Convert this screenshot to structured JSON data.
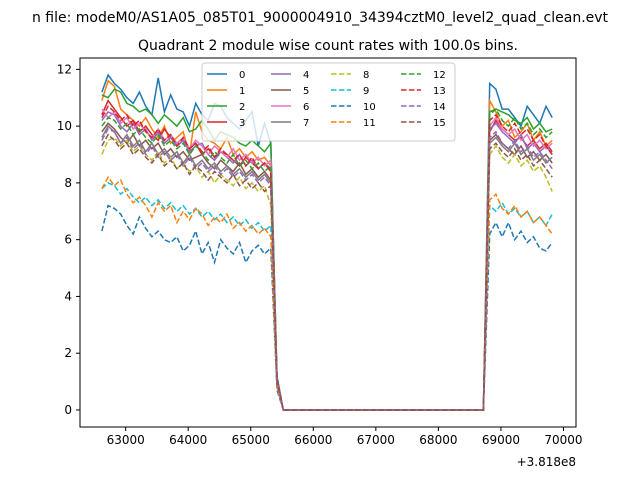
{
  "suptitle": "n file: modeM0/AS1A05_085T01_9000004910_34394cztM0_level2_quad_clean.evt",
  "chart_data": {
    "type": "line",
    "title": "Quadrant 2 module wise count rates with 100.0s bins.",
    "xlabel": "",
    "ylabel": "",
    "x_offset_label": "+3.818e8",
    "xlim": [
      62270,
      70200
    ],
    "ylim": [
      -0.6,
      12.4
    ],
    "xticks": [
      63000,
      64000,
      65000,
      66000,
      67000,
      68000,
      69000,
      70000
    ],
    "yticks": [
      0,
      2,
      4,
      6,
      8,
      10,
      12
    ],
    "grid": false,
    "legend_position": "top-center",
    "legend_columns": 4,
    "gap": [
      65300,
      68800
    ],
    "x_start": 62620,
    "x_step": 100,
    "series": [
      {
        "name": "0",
        "color": "#1f77b4",
        "dash": "solid",
        "values": [
          11.2,
          11.8,
          11.5,
          11.3,
          11.0,
          10.8,
          11.2,
          10.7,
          10.4,
          11.7,
          10.5,
          11.1,
          10.6,
          10.5,
          10.0,
          10.8,
          10.4,
          10.2,
          10.8,
          10.7,
          10.3,
          10.1,
          9.9,
          10.2,
          10.5,
          9.3,
          10.1,
          9.4,
          1.2,
          0,
          0,
          0,
          0,
          0,
          0,
          0,
          0,
          0,
          0,
          0,
          0,
          0,
          0,
          0,
          0,
          0,
          0,
          0,
          0,
          0,
          0,
          0,
          0,
          0,
          0,
          0,
          0,
          0,
          0,
          0,
          0,
          0,
          11.5,
          11.3,
          10.6,
          10.6,
          10.3,
          10.0,
          10.7,
          10.4,
          10.1,
          10.7,
          10.3
        ]
      },
      {
        "name": "1",
        "color": "#ff7f0e",
        "dash": "solid",
        "values": [
          10.9,
          11.6,
          11.4,
          10.6,
          10.4,
          10.2,
          10.0,
          10.3,
          9.9,
          9.6,
          10.0,
          9.4,
          9.6,
          9.8,
          9.0,
          10.5,
          9.8,
          9.5,
          9.4,
          9.2,
          9.6,
          9.0,
          9.2,
          8.9,
          9.1,
          8.8,
          8.9,
          8.6,
          1.1,
          0,
          0,
          0,
          0,
          0,
          0,
          0,
          0,
          0,
          0,
          0,
          0,
          0,
          0,
          0,
          0,
          0,
          0,
          0,
          0,
          0,
          0,
          0,
          0,
          0,
          0,
          0,
          0,
          0,
          0,
          0,
          0,
          0,
          10.9,
          10.5,
          10.0,
          10.2,
          9.6,
          9.8,
          10.1,
          9.5,
          9.8,
          9.3,
          9.5
        ]
      },
      {
        "name": "2",
        "color": "#2ca02c",
        "dash": "solid",
        "values": [
          11.1,
          11.0,
          11.3,
          11.2,
          10.8,
          10.7,
          10.5,
          10.6,
          10.4,
          10.1,
          10.4,
          10.2,
          10.0,
          10.3,
          9.8,
          9.9,
          10.2,
          9.9,
          9.5,
          9.8,
          9.7,
          9.6,
          9.4,
          9.3,
          9.5,
          9.3,
          9.1,
          9.4,
          1.1,
          0,
          0,
          0,
          0,
          0,
          0,
          0,
          0,
          0,
          0,
          0,
          0,
          0,
          0,
          0,
          0,
          0,
          0,
          0,
          0,
          0,
          0,
          0,
          0,
          0,
          0,
          0,
          0,
          0,
          0,
          0,
          0,
          0,
          10.5,
          10.6,
          10.5,
          10.4,
          10.2,
          10.1,
          10.3,
          9.9,
          10.1,
          9.8,
          9.9
        ]
      },
      {
        "name": "3",
        "color": "#d62728",
        "dash": "solid",
        "values": [
          10.4,
          10.9,
          10.6,
          10.3,
          10.0,
          10.2,
          9.8,
          10.0,
          9.7,
          9.5,
          9.9,
          9.6,
          9.3,
          9.5,
          9.2,
          9.4,
          9.0,
          9.2,
          8.9,
          9.1,
          9.0,
          8.8,
          8.6,
          8.9,
          8.7,
          8.5,
          8.7,
          8.4,
          1.1,
          0,
          0,
          0,
          0,
          0,
          0,
          0,
          0,
          0,
          0,
          0,
          0,
          0,
          0,
          0,
          0,
          0,
          0,
          0,
          0,
          0,
          0,
          0,
          0,
          0,
          0,
          0,
          0,
          0,
          0,
          0,
          0,
          0,
          9.8,
          10.2,
          9.9,
          9.7,
          9.5,
          9.6,
          9.3,
          9.5,
          9.2,
          9.4,
          9.1
        ]
      },
      {
        "name": "4",
        "color": "#9467bd",
        "dash": "solid",
        "values": [
          10.2,
          10.5,
          10.4,
          10.0,
          9.8,
          10.1,
          9.7,
          9.9,
          9.5,
          9.8,
          9.4,
          9.6,
          9.3,
          9.5,
          9.1,
          9.3,
          9.4,
          9.0,
          8.8,
          9.1,
          8.9,
          8.7,
          9.0,
          8.6,
          8.8,
          8.5,
          8.7,
          8.5,
          1.1,
          0,
          0,
          0,
          0,
          0,
          0,
          0,
          0,
          0,
          0,
          0,
          0,
          0,
          0,
          0,
          0,
          0,
          0,
          0,
          0,
          0,
          0,
          0,
          0,
          0,
          0,
          0,
          0,
          0,
          0,
          0,
          0,
          0,
          9.9,
          10.1,
          9.8,
          9.6,
          9.4,
          9.7,
          9.2,
          9.4,
          9.1,
          9.3,
          9.0
        ]
      },
      {
        "name": "5",
        "color": "#8c564b",
        "dash": "solid",
        "values": [
          9.8,
          10.1,
          9.9,
          9.6,
          9.4,
          9.7,
          9.3,
          9.5,
          9.2,
          9.4,
          9.0,
          9.2,
          8.9,
          9.1,
          8.8,
          8.9,
          9.0,
          8.7,
          8.5,
          8.8,
          8.6,
          8.4,
          8.7,
          8.3,
          8.5,
          8.2,
          8.4,
          8.1,
          1.0,
          0,
          0,
          0,
          0,
          0,
          0,
          0,
          0,
          0,
          0,
          0,
          0,
          0,
          0,
          0,
          0,
          0,
          0,
          0,
          0,
          0,
          0,
          0,
          0,
          0,
          0,
          0,
          0,
          0,
          0,
          0,
          0,
          0,
          9.5,
          9.7,
          9.4,
          9.2,
          9.0,
          9.3,
          8.9,
          9.1,
          8.8,
          9.0,
          8.7
        ]
      },
      {
        "name": "6",
        "color": "#e377c2",
        "dash": "solid",
        "values": [
          10.6,
          10.3,
          10.5,
          10.1,
          10.3,
          9.9,
          10.1,
          9.8,
          9.6,
          9.9,
          9.5,
          9.7,
          9.4,
          9.6,
          9.2,
          9.5,
          9.3,
          9.0,
          9.3,
          9.1,
          8.9,
          9.2,
          8.8,
          9.0,
          8.7,
          8.9,
          8.6,
          8.8,
          1.1,
          0,
          0,
          0,
          0,
          0,
          0,
          0,
          0,
          0,
          0,
          0,
          0,
          0,
          0,
          0,
          0,
          0,
          0,
          0,
          0,
          0,
          0,
          0,
          0,
          0,
          0,
          0,
          0,
          0,
          0,
          0,
          0,
          0,
          10.0,
          10.3,
          9.9,
          9.7,
          9.9,
          9.5,
          9.7,
          9.3,
          9.5,
          9.2,
          9.4
        ]
      },
      {
        "name": "7",
        "color": "#7f7f7f",
        "dash": "solid",
        "values": [
          9.6,
          10.0,
          9.8,
          9.4,
          9.7,
          9.3,
          9.5,
          9.1,
          9.4,
          9.0,
          9.2,
          8.9,
          9.1,
          8.7,
          9.0,
          8.6,
          8.8,
          8.5,
          8.7,
          8.4,
          8.6,
          8.3,
          8.5,
          8.2,
          8.4,
          8.1,
          8.3,
          8.0,
          1.0,
          0,
          0,
          0,
          0,
          0,
          0,
          0,
          0,
          0,
          0,
          0,
          0,
          0,
          0,
          0,
          0,
          0,
          0,
          0,
          0,
          0,
          0,
          0,
          0,
          0,
          0,
          0,
          0,
          0,
          0,
          0,
          0,
          0,
          9.4,
          9.6,
          9.3,
          9.1,
          9.4,
          9.0,
          9.2,
          8.8,
          9.0,
          8.7,
          8.9
        ]
      },
      {
        "name": "8",
        "color": "#bcbd22",
        "dash": "dashed",
        "values": [
          9.0,
          9.5,
          9.6,
          9.3,
          9.5,
          9.1,
          9.3,
          9.0,
          8.8,
          9.1,
          8.7,
          8.9,
          8.5,
          8.7,
          8.4,
          8.6,
          8.2,
          8.4,
          8.0,
          8.3,
          8.1,
          7.9,
          8.2,
          7.8,
          8.0,
          7.7,
          7.9,
          7.2,
          0.9,
          0,
          0,
          0,
          0,
          0,
          0,
          0,
          0,
          0,
          0,
          0,
          0,
          0,
          0,
          0,
          0,
          0,
          0,
          0,
          0,
          0,
          0,
          0,
          0,
          0,
          0,
          0,
          0,
          0,
          0,
          0,
          0,
          0,
          9.0,
          9.3,
          8.9,
          8.7,
          9.0,
          8.6,
          8.8,
          8.4,
          8.6,
          8.2,
          7.7
        ]
      },
      {
        "name": "9",
        "color": "#17becf",
        "dash": "dashed",
        "values": [
          7.8,
          8.0,
          7.9,
          7.6,
          7.8,
          7.5,
          7.3,
          7.5,
          7.2,
          7.4,
          7.1,
          7.3,
          7.0,
          7.2,
          6.9,
          7.1,
          6.8,
          7.0,
          6.7,
          6.9,
          6.6,
          6.8,
          6.5,
          6.7,
          6.4,
          6.6,
          6.3,
          6.5,
          0.8,
          0,
          0,
          0,
          0,
          0,
          0,
          0,
          0,
          0,
          0,
          0,
          0,
          0,
          0,
          0,
          0,
          0,
          0,
          0,
          0,
          0,
          0,
          0,
          0,
          0,
          0,
          0,
          0,
          0,
          0,
          0,
          0,
          0,
          7.2,
          7.0,
          7.3,
          6.9,
          7.1,
          6.8,
          7.0,
          6.6,
          6.8,
          6.5,
          6.9
        ]
      },
      {
        "name": "10",
        "color": "#1f77b4",
        "dash": "dashed",
        "values": [
          6.3,
          7.2,
          7.1,
          6.9,
          6.5,
          6.2,
          6.8,
          6.4,
          6.1,
          6.3,
          6.0,
          5.9,
          6.1,
          5.6,
          5.8,
          6.3,
          5.5,
          5.9,
          5.2,
          6.0,
          5.7,
          5.5,
          5.9,
          5.2,
          5.6,
          5.8,
          5.5,
          5.7,
          0.7,
          0,
          0,
          0,
          0,
          0,
          0,
          0,
          0,
          0,
          0,
          0,
          0,
          0,
          0,
          0,
          0,
          0,
          0,
          0,
          0,
          0,
          0,
          0,
          0,
          0,
          0,
          0,
          0,
          0,
          0,
          0,
          0,
          0,
          6.2,
          6.6,
          6.1,
          6.6,
          6.0,
          6.3,
          5.9,
          6.1,
          5.7,
          5.6,
          5.9
        ]
      },
      {
        "name": "11",
        "color": "#ff7f0e",
        "dash": "dashed",
        "values": [
          7.8,
          8.2,
          7.9,
          8.1,
          7.6,
          7.3,
          7.5,
          7.2,
          6.8,
          7.3,
          7.0,
          7.2,
          6.6,
          7.0,
          6.7,
          7.1,
          6.9,
          6.5,
          6.8,
          6.6,
          6.9,
          6.4,
          6.6,
          6.3,
          6.5,
          6.2,
          6.4,
          6.1,
          0.8,
          0,
          0,
          0,
          0,
          0,
          0,
          0,
          0,
          0,
          0,
          0,
          0,
          0,
          0,
          0,
          0,
          0,
          0,
          0,
          0,
          0,
          0,
          0,
          0,
          0,
          0,
          0,
          0,
          0,
          0,
          0,
          0,
          0,
          7.4,
          7.6,
          7.1,
          6.9,
          7.2,
          6.8,
          7.0,
          6.6,
          6.8,
          6.5,
          6.2
        ]
      },
      {
        "name": "12",
        "color": "#2ca02c",
        "dash": "dashed",
        "values": [
          10.0,
          10.3,
          10.2,
          9.9,
          10.1,
          9.7,
          9.9,
          9.6,
          9.4,
          9.7,
          9.3,
          9.5,
          9.2,
          9.4,
          9.0,
          9.3,
          9.1,
          8.8,
          9.1,
          8.9,
          8.7,
          9.0,
          8.6,
          8.8,
          8.5,
          8.7,
          8.4,
          8.6,
          1.1,
          0,
          0,
          0,
          0,
          0,
          0,
          0,
          0,
          0,
          0,
          0,
          0,
          0,
          0,
          0,
          0,
          0,
          0,
          0,
          0,
          0,
          0,
          0,
          0,
          0,
          0,
          0,
          0,
          0,
          0,
          0,
          0,
          0,
          10.4,
          10.6,
          10.2,
          10.0,
          10.3,
          9.9,
          10.1,
          9.7,
          9.9,
          9.6,
          9.8
        ]
      },
      {
        "name": "13",
        "color": "#d62728",
        "dash": "dashed",
        "values": [
          10.3,
          10.7,
          10.5,
          10.2,
          10.4,
          10.0,
          10.2,
          9.8,
          9.6,
          9.9,
          9.5,
          9.7,
          9.3,
          9.6,
          9.2,
          9.4,
          9.1,
          9.3,
          8.9,
          9.2,
          9.0,
          8.8,
          9.0,
          8.6,
          8.9,
          8.5,
          8.7,
          8.4,
          1.1,
          0,
          0,
          0,
          0,
          0,
          0,
          0,
          0,
          0,
          0,
          0,
          0,
          0,
          0,
          0,
          0,
          0,
          0,
          0,
          0,
          0,
          0,
          0,
          0,
          0,
          0,
          0,
          0,
          0,
          0,
          0,
          0,
          0,
          10.2,
          10.4,
          10.0,
          9.8,
          10.1,
          9.7,
          9.9,
          9.5,
          9.7,
          9.3,
          9.0
        ]
      },
      {
        "name": "14",
        "color": "#9467bd",
        "dash": "dashed",
        "values": [
          9.5,
          9.9,
          9.8,
          9.4,
          9.6,
          9.2,
          9.4,
          9.0,
          9.3,
          8.9,
          9.1,
          8.8,
          9.0,
          8.6,
          8.9,
          8.5,
          8.7,
          8.4,
          8.6,
          8.3,
          8.5,
          8.2,
          8.4,
          8.1,
          8.3,
          8.0,
          8.2,
          7.9,
          1.0,
          0,
          0,
          0,
          0,
          0,
          0,
          0,
          0,
          0,
          0,
          0,
          0,
          0,
          0,
          0,
          0,
          0,
          0,
          0,
          0,
          0,
          0,
          0,
          0,
          0,
          0,
          0,
          0,
          0,
          0,
          0,
          0,
          0,
          9.6,
          9.8,
          9.4,
          9.2,
          9.5,
          9.1,
          9.3,
          8.9,
          9.1,
          8.8,
          8.5
        ]
      },
      {
        "name": "15",
        "color": "#8c564b",
        "dash": "dashed",
        "values": [
          9.3,
          9.7,
          9.5,
          9.2,
          9.4,
          9.0,
          9.2,
          8.9,
          8.7,
          9.0,
          8.6,
          8.8,
          8.5,
          8.7,
          8.3,
          8.6,
          8.4,
          8.1,
          8.4,
          8.2,
          8.0,
          8.3,
          7.9,
          8.1,
          7.8,
          8.0,
          7.7,
          7.9,
          1.0,
          0,
          0,
          0,
          0,
          0,
          0,
          0,
          0,
          0,
          0,
          0,
          0,
          0,
          0,
          0,
          0,
          0,
          0,
          0,
          0,
          0,
          0,
          0,
          0,
          0,
          0,
          0,
          0,
          0,
          0,
          0,
          0,
          0,
          9.2,
          9.4,
          9.1,
          8.9,
          9.2,
          8.8,
          9.0,
          8.6,
          8.8,
          8.5,
          8.2
        ]
      }
    ]
  }
}
